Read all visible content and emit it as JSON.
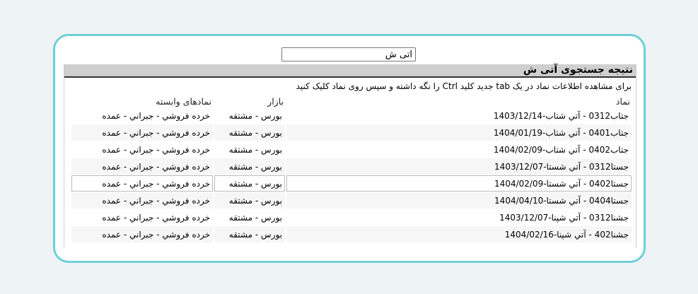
{
  "search": {
    "value": "آتی ش"
  },
  "result": {
    "title": "نتیجه جستجوی آتی ش",
    "hint": "برای مشاهده اطلاعات نماد در یک tab جدید کلید Ctrl را نگه داشته و سپس روی نماد کلیک کنید",
    "columns": {
      "symbol": "نماد",
      "market": "بازار",
      "related": "نمادهای وابسته"
    },
    "rows": [
      {
        "symbol": "جتاب0312 - آتي شتاب-1403/12/14",
        "market": "بورس - مشتقه",
        "related": "خرده فروشي - جبراني - عمده"
      },
      {
        "symbol": "جتاب0401 - آتي شتاب-1404/01/19",
        "market": "بورس - مشتقه",
        "related": "خرده فروشي - جبراني - عمده"
      },
      {
        "symbol": "جتاب0402 - آتي شتاب-1404/02/09",
        "market": "بورس - مشتقه",
        "related": "خرده فروشي - جبراني - عمده"
      },
      {
        "symbol": "جستا0312 - آتي شستا-1403/12/07",
        "market": "بورس - مشتقه",
        "related": "خرده فروشي - جبراني - عمده"
      },
      {
        "symbol": "جستا0402 - آتي شستا-1404/02/09",
        "market": "بورس - مشتقه",
        "related": "خرده فروشي - جبراني - عمده"
      },
      {
        "symbol": "جستا0404 - آتي شستا-1404/04/10",
        "market": "بورس - مشتقه",
        "related": "خرده فروشي - جبراني - عمده"
      },
      {
        "symbol": "جشنا0312 - آتي شپنا-1403/12/07",
        "market": "بورس - مشتقه",
        "related": "خرده فروشي - جبراني - عمده"
      },
      {
        "symbol": "جشنا402 - آتي شپنا-1404/02/16",
        "market": "بورس - مشتقه",
        "related": "خرده فروشي - جبراني - عمده"
      }
    ]
  }
}
